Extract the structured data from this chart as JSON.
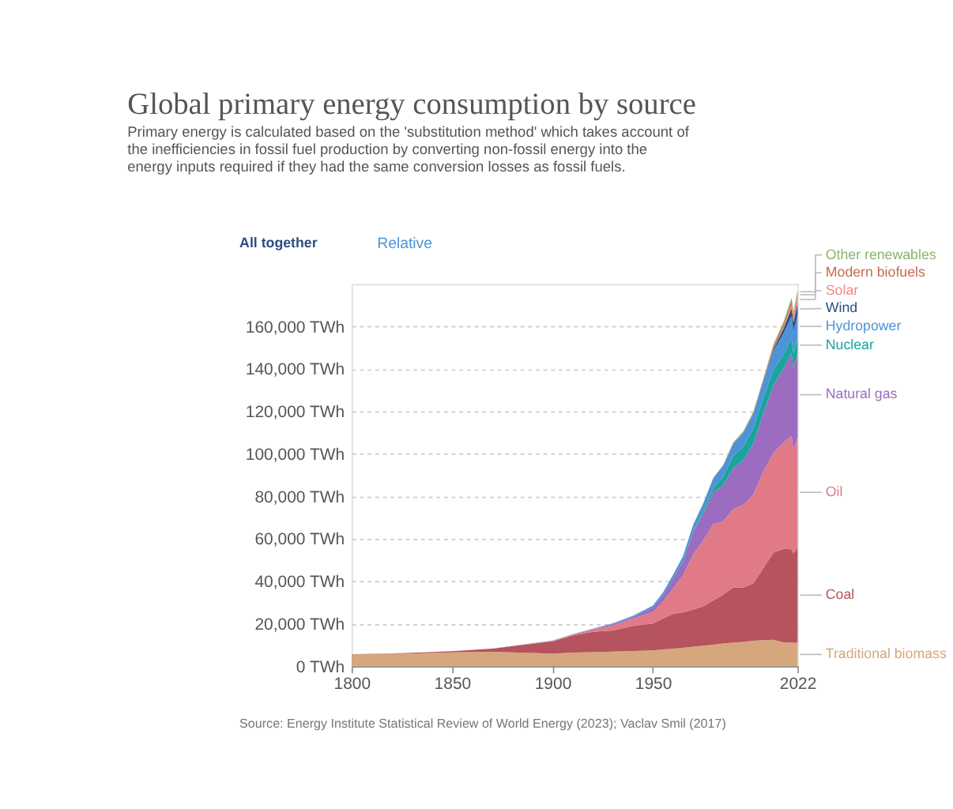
{
  "chart_data": {
    "type": "area",
    "stacked": true,
    "title": "Global primary energy consumption by source",
    "subtitle": "Primary energy is calculated based on the 'substitution method' which takes account of the inefficiencies in fossil fuel production by converting non-fossil energy into the energy inputs required if they had the same conversion losses as fossil fuels.",
    "x": [
      1800,
      1820,
      1850,
      1870,
      1900,
      1910,
      1920,
      1930,
      1940,
      1950,
      1955,
      1960,
      1965,
      1970,
      1975,
      1980,
      1985,
      1990,
      1995,
      2000,
      2005,
      2010,
      2015,
      2019,
      2020,
      2022
    ],
    "series": [
      {
        "name": "Traditional biomass",
        "color": "#d6a77c",
        "values": [
          5600,
          5800,
          6500,
          6800,
          6000,
          6400,
          6600,
          6900,
          7200,
          7500,
          7900,
          8300,
          8700,
          9200,
          9700,
          10200,
          10700,
          11200,
          11500,
          12000,
          12300,
          12500,
          11300,
          11100,
          11100,
          11100
        ]
      },
      {
        "name": "Coal",
        "color": "#b5535e",
        "values": [
          100,
          200,
          600,
          1500,
          5700,
          8000,
          9600,
          10000,
          11800,
          12600,
          14500,
          16400,
          16700,
          17500,
          18500,
          20800,
          23000,
          25900,
          25500,
          27000,
          34000,
          41000,
          44000,
          44000,
          42000,
          44800
        ]
      },
      {
        "name": "Oil",
        "color": "#e07a87",
        "values": [
          0,
          0,
          0,
          0,
          200,
          500,
          1100,
          2300,
          3400,
          5500,
          8000,
          12000,
          17500,
          26000,
          31000,
          36000,
          34500,
          37000,
          39000,
          42000,
          45500,
          47000,
          50000,
          53500,
          48500,
          52000
        ]
      },
      {
        "name": "Natural gas",
        "color": "#9b6cc0",
        "values": [
          0,
          0,
          0,
          0,
          100,
          100,
          200,
          600,
          800,
          2100,
          3000,
          4500,
          6500,
          10500,
          12500,
          14800,
          17000,
          19500,
          21000,
          24000,
          27500,
          32000,
          35000,
          39000,
          38500,
          40000
        ]
      },
      {
        "name": "Nuclear",
        "color": "#1ba39d",
        "values": [
          0,
          0,
          0,
          0,
          0,
          0,
          0,
          0,
          0,
          0,
          0,
          0,
          100,
          200,
          1100,
          2000,
          4000,
          5500,
          6400,
          7000,
          7300,
          7100,
          6500,
          6900,
          6800,
          6700
        ]
      },
      {
        "name": "Hydropower",
        "color": "#4e93d6",
        "values": [
          0,
          0,
          0,
          0,
          100,
          100,
          200,
          400,
          500,
          900,
          1300,
          1800,
          2400,
          3100,
          3800,
          4700,
          5300,
          5800,
          6600,
          7000,
          7700,
          9000,
          10000,
          10600,
          11000,
          11000
        ]
      },
      {
        "name": "Wind",
        "color": "#2b4d80",
        "values": [
          0,
          0,
          0,
          0,
          0,
          0,
          0,
          0,
          0,
          0,
          0,
          0,
          0,
          0,
          0,
          0,
          0,
          0,
          0,
          100,
          300,
          900,
          2200,
          3500,
          4000,
          5500
        ]
      },
      {
        "name": "Solar",
        "color": "#f08a80",
        "values": [
          0,
          0,
          0,
          0,
          0,
          0,
          0,
          0,
          0,
          0,
          0,
          0,
          0,
          0,
          0,
          0,
          0,
          0,
          0,
          0,
          0,
          100,
          700,
          1800,
          2200,
          3300
        ]
      },
      {
        "name": "Modern biofuels",
        "color": "#c9684a",
        "values": [
          0,
          0,
          0,
          0,
          0,
          0,
          0,
          0,
          0,
          0,
          0,
          0,
          0,
          0,
          0,
          0,
          100,
          200,
          200,
          300,
          400,
          1200,
          1400,
          1600,
          1600,
          1200
        ]
      },
      {
        "name": "Other renewables",
        "color": "#8ab46b",
        "values": [
          0,
          0,
          0,
          0,
          0,
          0,
          0,
          0,
          0,
          0,
          0,
          0,
          0,
          0,
          100,
          200,
          300,
          400,
          500,
          600,
          700,
          900,
          1200,
          1500,
          1500,
          1600
        ]
      }
    ],
    "xlim": [
      1800,
      2022
    ],
    "xticks": [
      1800,
      1850,
      1900,
      1950,
      2022
    ],
    "ylim": [
      0,
      180000
    ],
    "yticks": [
      {
        "value": 0,
        "label": "0 TWh"
      },
      {
        "value": 20000,
        "label": "20,000 TWh"
      },
      {
        "value": 40000,
        "label": "40,000 TWh"
      },
      {
        "value": 60000,
        "label": "60,000 TWh"
      },
      {
        "value": 80000,
        "label": "80,000 TWh"
      },
      {
        "value": 100000,
        "label": "100,000 TWh"
      },
      {
        "value": 120000,
        "label": "120,000 TWh"
      },
      {
        "value": 140000,
        "label": "140,000 TWh"
      },
      {
        "value": 160000,
        "label": "160,000 TWh"
      }
    ],
    "grid": "y",
    "annotations": [
      "All together",
      "Relative",
      "Source: Energy Institute Statistical Review of World Energy (2023); Vaclav Smil (2017)"
    ]
  }
}
